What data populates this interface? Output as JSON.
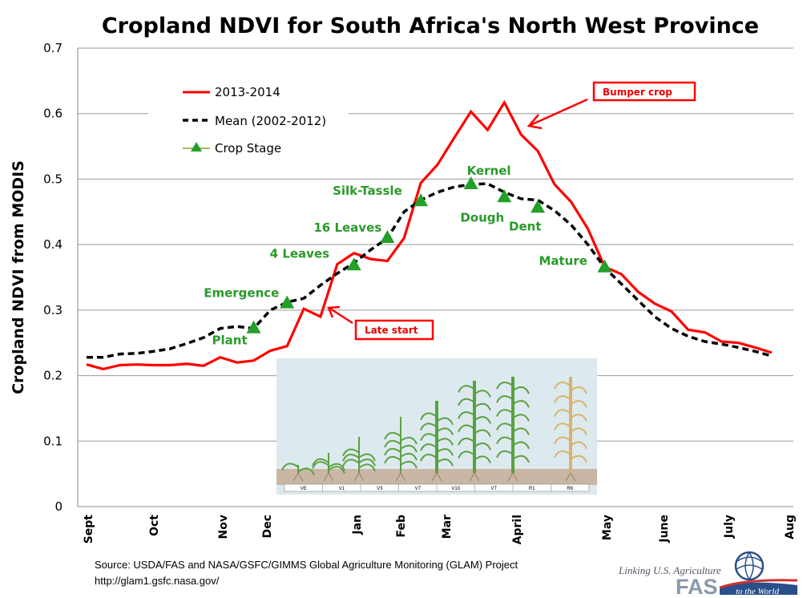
{
  "chart_data": {
    "type": "line",
    "title": "Cropland NDVI for South Africa's North West Province",
    "ylabel": "Cropland NDVI from MODIS",
    "xlabel": "",
    "ylim": [
      0,
      0.7
    ],
    "yticks": [
      "0",
      "0.1",
      "0.2",
      "0.3",
      "0.4",
      "0.5",
      "0.6",
      "0.7"
    ],
    "x_tick_labels": [
      "Sept",
      "Oct",
      "Nov",
      "Dec",
      "Jan",
      "Feb",
      "Mar",
      "April",
      "May",
      "June",
      "July",
      "Aug"
    ],
    "grid": "horizontal",
    "legend_position": "top-left",
    "series": [
      {
        "name": "2013-2014",
        "color": "#ff0000",
        "style": "solid",
        "values": [
          0.217,
          0.21,
          0.216,
          0.217,
          0.216,
          0.216,
          0.218,
          0.215,
          0.228,
          0.22,
          0.223,
          0.238,
          0.245,
          0.302,
          0.29,
          0.37,
          0.387,
          0.378,
          0.375,
          0.41,
          0.494,
          0.522,
          0.563,
          0.603,
          0.575,
          0.617,
          0.568,
          0.543,
          0.492,
          0.465,
          0.424,
          0.366,
          0.355,
          0.328,
          0.31,
          0.298,
          0.27,
          0.266,
          0.252,
          0.25,
          0.243,
          0.235
        ]
      },
      {
        "name": "Mean (2002-2012)",
        "color": "#000000",
        "style": "dashed",
        "values": [
          0.228,
          0.228,
          0.233,
          0.234,
          0.237,
          0.241,
          0.249,
          0.258,
          0.272,
          0.275,
          0.272,
          0.3,
          0.312,
          0.318,
          0.338,
          0.356,
          0.372,
          0.392,
          0.41,
          0.45,
          0.468,
          0.48,
          0.488,
          0.492,
          0.493,
          0.48,
          0.47,
          0.468,
          0.452,
          0.43,
          0.4,
          0.365,
          0.34,
          0.315,
          0.29,
          0.272,
          0.26,
          0.252,
          0.248,
          0.243,
          0.237,
          0.23
        ]
      }
    ],
    "crop_stage": {
      "name": "Crop Stage",
      "color": "#22a02a",
      "points": [
        {
          "label": "Plant",
          "index": 10,
          "value": 0.272
        },
        {
          "label": "Emergence",
          "index": 12,
          "value": 0.31
        },
        {
          "label": "4 Leaves",
          "index": 16,
          "value": 0.368
        },
        {
          "label": "16 Leaves",
          "index": 18,
          "value": 0.41
        },
        {
          "label": "Silk-Tassle",
          "index": 20,
          "value": 0.466
        },
        {
          "label": "Kernel",
          "index": 23,
          "value": 0.492
        },
        {
          "label": "Dough",
          "index": 25,
          "value": 0.472
        },
        {
          "label": "Dent",
          "index": 27,
          "value": 0.456
        },
        {
          "label": "Mature",
          "index": 31,
          "value": 0.365
        }
      ]
    },
    "annotations": [
      "Bumper crop",
      "Late start"
    ]
  },
  "inset": {
    "stages": [
      "VE",
      "V1",
      "V3",
      "V7",
      "V10",
      "VT",
      "R1",
      "R6"
    ]
  },
  "source": {
    "line1": "Source:  USDA/FAS and NASA/GSFC/GIMMS Global Agriculture Monitoring (GLAM) Project",
    "line2": "http://glam1.gsfc.nasa.gov/"
  },
  "logo": {
    "tagline": "Linking U.S. Agriculture",
    "name": "FAS",
    "sub": "to the World"
  }
}
